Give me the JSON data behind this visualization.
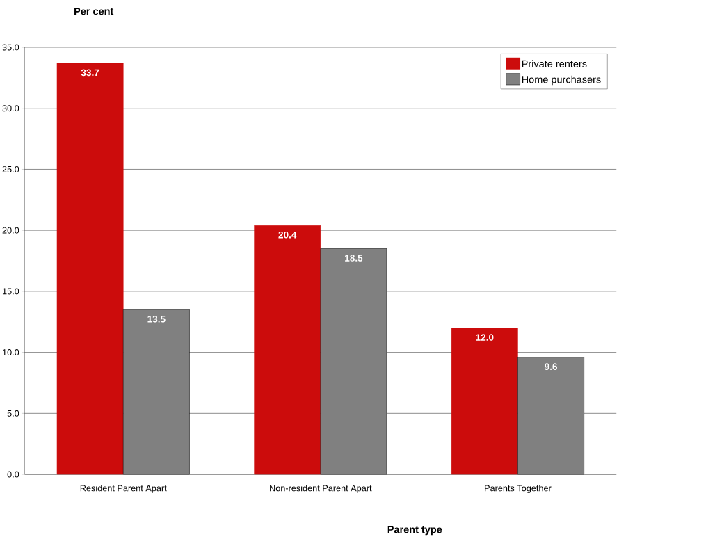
{
  "chart_data": {
    "type": "bar",
    "xlabel": "Parent type",
    "ylabel": "Per cent",
    "categories": [
      "Resident Parent Apart",
      "Non-resident Parent Apart",
      "Parents Together"
    ],
    "series": [
      {
        "name": "Private renters",
        "color": "#cc0c0c",
        "values": [
          33.7,
          20.4,
          12.0
        ],
        "value_labels": [
          "33.7",
          "20.4",
          "12.0"
        ]
      },
      {
        "name": "Home purchasers",
        "color": "#808080",
        "values": [
          13.5,
          18.5,
          9.6
        ],
        "value_labels": [
          "13.5",
          "18.5",
          "9.6"
        ]
      }
    ],
    "ylim": [
      0,
      35
    ],
    "yticks": [
      {
        "value": 0,
        "label": "0.0"
      },
      {
        "value": 5,
        "label": "5.0"
      },
      {
        "value": 10,
        "label": "10.0"
      },
      {
        "value": 15,
        "label": "15.0"
      },
      {
        "value": 20,
        "label": "20.0"
      },
      {
        "value": 25,
        "label": "25.0"
      },
      {
        "value": 30,
        "label": "30.0"
      },
      {
        "value": 35,
        "label": "35.0"
      }
    ],
    "grid": "y",
    "legend": "top right"
  }
}
